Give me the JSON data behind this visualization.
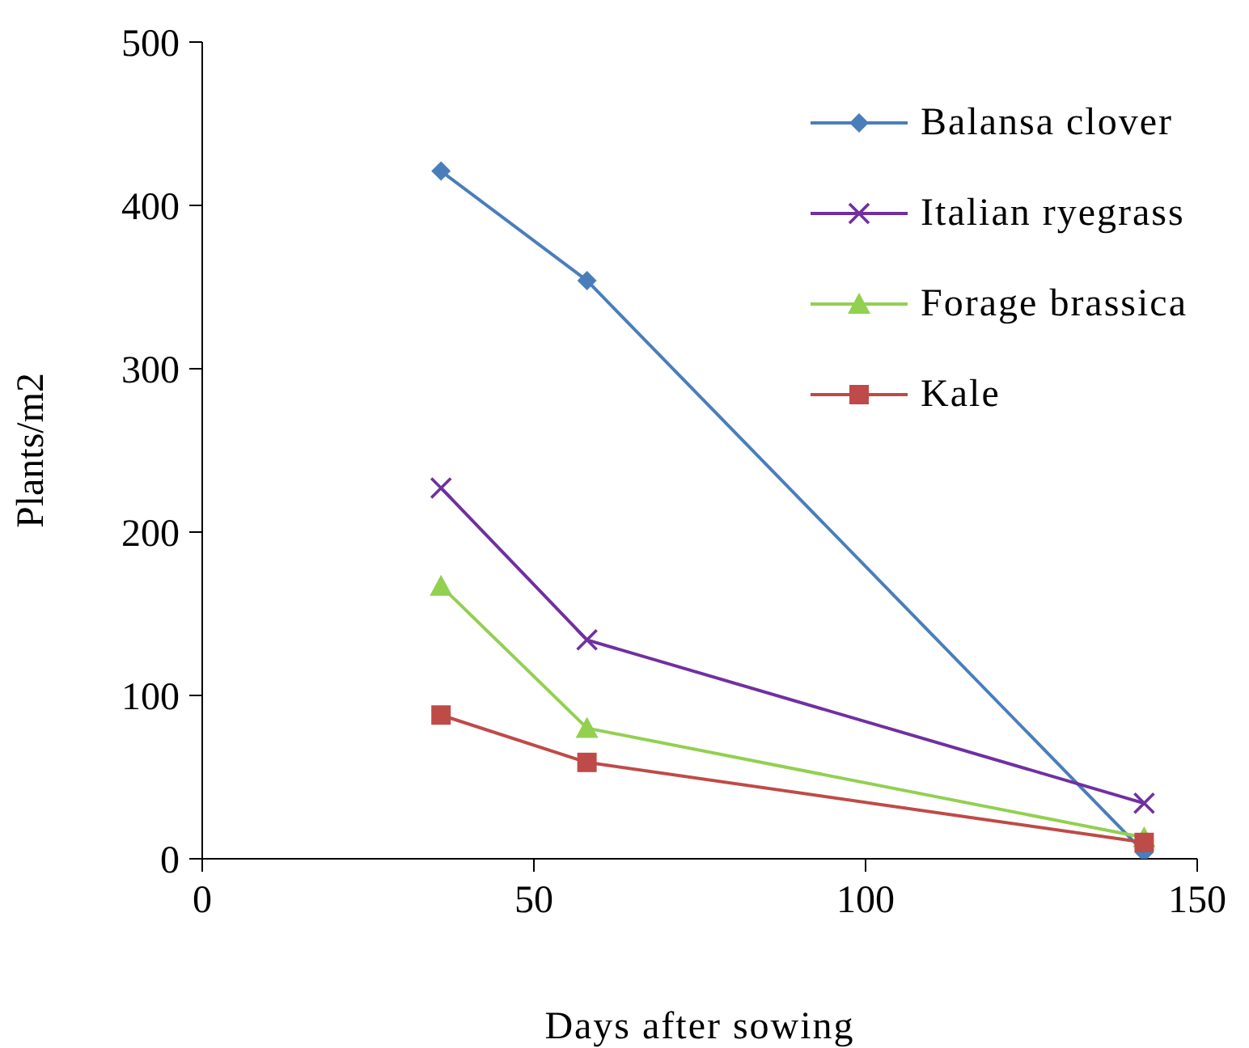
{
  "chart_data": {
    "type": "line",
    "xlabel": "Days after sowing",
    "ylabel": "Plants/m2",
    "x": [
      36,
      58,
      142
    ],
    "series": [
      {
        "name": "Balansa clover",
        "color": "#4a7ebb",
        "marker": "diamond",
        "values": [
          421,
          354,
          4
        ]
      },
      {
        "name": "Italian ryegrass",
        "color": "#7030a0",
        "marker": "cross",
        "values": [
          227,
          134,
          34
        ]
      },
      {
        "name": "Forage brassica",
        "color": "#92d050",
        "marker": "triangle",
        "values": [
          167,
          80,
          13
        ]
      },
      {
        "name": "Kale",
        "color": "#be4b48",
        "marker": "square",
        "values": [
          88,
          59,
          10
        ]
      }
    ],
    "xlim": [
      0,
      150
    ],
    "xticks": [
      0,
      50,
      100,
      150
    ],
    "ylim": [
      0,
      500
    ],
    "yticks": [
      0,
      100,
      200,
      300,
      400,
      500
    ],
    "grid": false,
    "legend": "top right",
    "line_style": "solid"
  }
}
